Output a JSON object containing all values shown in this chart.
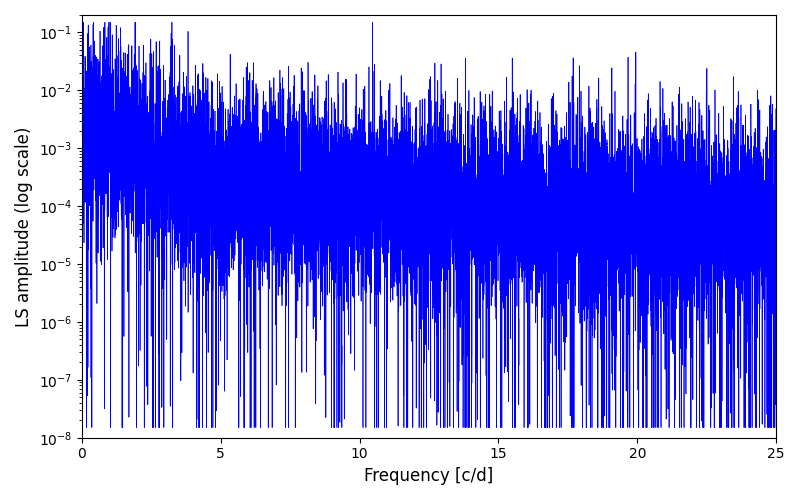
{
  "freq_min": 0.0,
  "freq_max": 25.0,
  "n_points": 10000,
  "ylim": [
    1e-08,
    0.2
  ],
  "ylabel": "LS amplitude (log scale)",
  "xlabel": "Frequency [c/d]",
  "line_color": "#0000ff",
  "line_width": 0.5,
  "background_color": "#ffffff",
  "seed": 12345,
  "fig_width": 8.0,
  "fig_height": 5.0,
  "dpi": 100
}
